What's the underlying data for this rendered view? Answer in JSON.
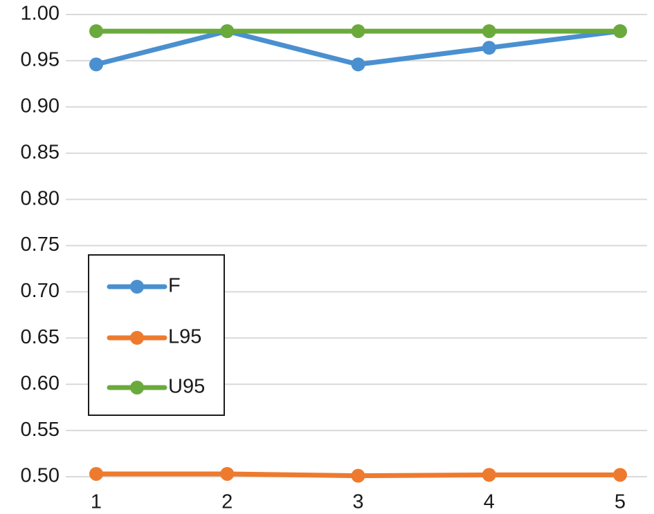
{
  "chart_data": {
    "type": "line",
    "title": "",
    "xlabel": "",
    "ylabel": "",
    "x": [
      1,
      2,
      3,
      4,
      5
    ],
    "x_tick_labels": [
      "1",
      "2",
      "3",
      "4",
      "5"
    ],
    "y_tick_labels": [
      "0.50",
      "0.55",
      "0.60",
      "0.65",
      "0.70",
      "0.75",
      "0.80",
      "0.85",
      "0.90",
      "0.95",
      "1.00"
    ],
    "ylim": [
      0.5,
      1.0
    ],
    "y_ticks": [
      0.5,
      0.55,
      0.6,
      0.65,
      0.7,
      0.75,
      0.8,
      0.85,
      0.9,
      0.95,
      1.0
    ],
    "grid": true,
    "legend_position": "left-middle",
    "series": [
      {
        "name": "F",
        "color": "#4a90d0",
        "values": [
          0.946,
          0.982,
          0.946,
          0.964,
          0.982
        ]
      },
      {
        "name": "L95",
        "color": "#ee7a2e",
        "values": [
          0.503,
          0.503,
          0.501,
          0.502,
          0.502
        ]
      },
      {
        "name": "U95",
        "color": "#6aaa3c",
        "values": [
          0.982,
          0.982,
          0.982,
          0.982,
          0.982
        ]
      }
    ]
  }
}
